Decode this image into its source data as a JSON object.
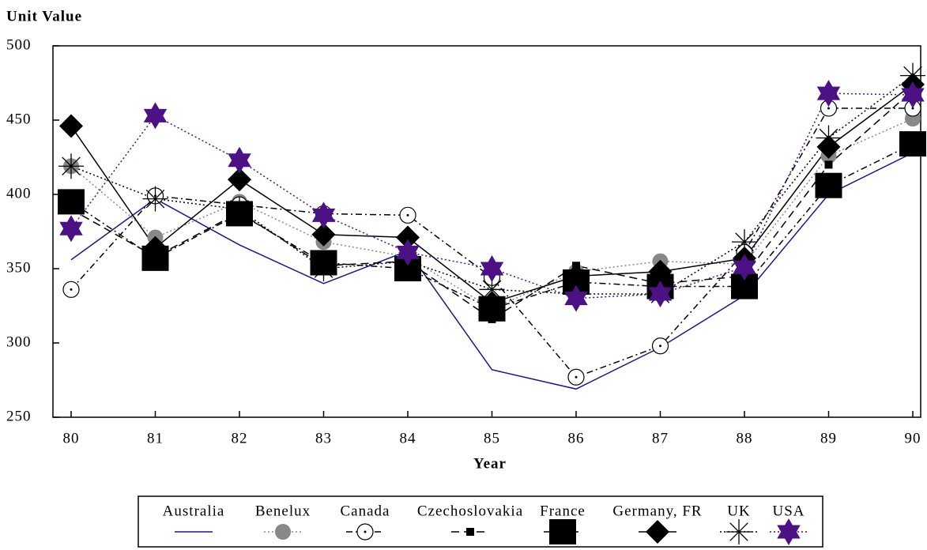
{
  "chart_data": {
    "type": "line",
    "title": "Unit Value",
    "x_label": "Year",
    "x": [
      80,
      81,
      82,
      83,
      84,
      85,
      86,
      87,
      88,
      89,
      90
    ],
    "xlim": [
      80,
      90
    ],
    "xticks": [
      80,
      81,
      82,
      83,
      84,
      85,
      86,
      87,
      88,
      89,
      90
    ],
    "ylim": [
      250,
      500
    ],
    "yticks": [
      250,
      300,
      350,
      400,
      450,
      500
    ],
    "legend": "bottom",
    "series": [
      {
        "name": "Australia",
        "color": "#1a1a80",
        "marker": "none",
        "dash": "solid",
        "values": [
          356,
          397,
          366,
          340,
          362,
          282,
          269,
          297,
          332,
          400,
          428
        ]
      },
      {
        "name": "Benelux",
        "color": "#888888",
        "marker": "circle",
        "dash": "dotted",
        "values": [
          419,
          371,
          395,
          368,
          358,
          323,
          348,
          355,
          353,
          426,
          451
        ]
      },
      {
        "name": "Canada",
        "color": "#000000",
        "marker": "open-circle",
        "dash": "dashdot",
        "values": [
          336,
          399,
          393,
          387,
          386,
          344,
          277,
          298,
          361,
          458,
          458
        ]
      },
      {
        "name": "Czechoslovakia",
        "color": "#000000",
        "marker": "small-square",
        "dash": "dashed",
        "values": [
          390,
          358,
          388,
          352,
          355,
          316,
          352,
          340,
          345,
          420,
          470
        ]
      },
      {
        "name": "France",
        "color": "#000000",
        "marker": "square",
        "dash": "dashdot",
        "values": [
          395,
          357,
          387,
          354,
          350,
          323,
          341,
          338,
          338,
          406,
          434
        ]
      },
      {
        "name": "Germany, FR",
        "color": "#000000",
        "marker": "diamond",
        "dash": "solid",
        "values": [
          446,
          364,
          410,
          373,
          371,
          327,
          345,
          348,
          357,
          432,
          474
        ]
      },
      {
        "name": "UK",
        "color": "#000000",
        "marker": "asterisk",
        "dash": "dotted",
        "values": [
          419,
          397,
          390,
          350,
          355,
          336,
          333,
          333,
          368,
          438,
          480
        ]
      },
      {
        "name": "USA",
        "color": "#4b1185",
        "marker": "star",
        "dash": "dotted",
        "values": [
          377,
          453,
          423,
          386,
          361,
          350,
          330,
          333,
          351,
          468,
          467
        ]
      }
    ]
  }
}
